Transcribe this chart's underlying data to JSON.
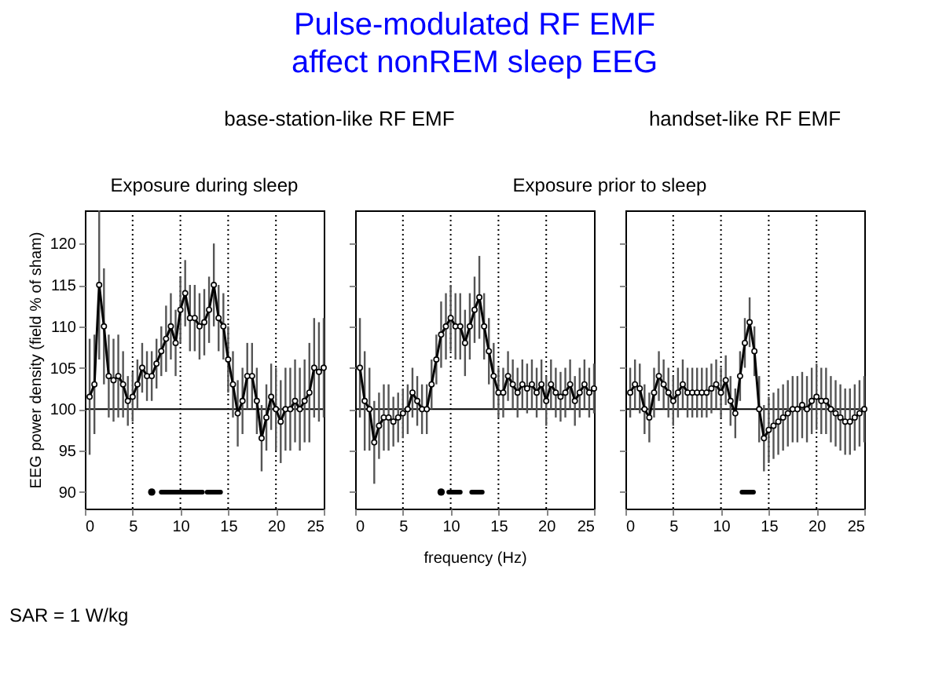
{
  "chart_data": [
    {
      "type": "line",
      "ylabel": "EEG power density (field % of sham)",
      "annotations": [
        "base-station-like RF EMF",
        "Exposure during sleep",
        "SAR = 1 W/kg"
      ],
      "xlim": [
        0,
        25
      ],
      "xticks": [
        0,
        5,
        10,
        15,
        20,
        25
      ],
      "ylim": [
        88,
        124
      ],
      "yticks": [
        90,
        95,
        100,
        105,
        110,
        115,
        120
      ],
      "grid": false,
      "marker": "circle",
      "x": [
        0.5,
        1,
        1.5,
        2,
        2.5,
        3,
        3.5,
        4,
        4.5,
        5,
        5.5,
        6,
        6.5,
        7,
        7.5,
        8,
        8.5,
        9,
        9.5,
        10,
        10.5,
        11,
        11.5,
        12,
        12.5,
        13,
        13.5,
        14,
        14.5,
        15,
        15.5,
        16,
        16.5,
        17,
        17.5,
        18,
        18.5,
        19,
        19.5,
        20,
        20.5,
        21,
        21.5,
        22,
        22.5,
        23,
        23.5,
        24,
        24.5,
        25
      ],
      "series": [
        {
          "color": "#000000",
          "values": [
            101.5,
            103,
            115,
            110,
            104,
            103.5,
            104,
            103,
            101,
            101.5,
            103,
            105,
            104,
            104,
            105.5,
            107,
            108.5,
            110,
            108,
            112,
            114,
            111,
            111,
            110,
            110.5,
            112,
            115,
            111,
            110,
            106,
            103,
            99.5,
            101,
            104,
            104,
            101,
            96.5,
            99,
            101.5,
            100,
            98.5,
            100,
            100,
            101,
            100,
            101,
            102,
            105,
            104.5,
            105
          ],
          "errors": [
            7,
            6,
            9,
            7,
            5,
            5,
            5,
            4,
            3,
            3,
            3,
            3,
            3,
            3,
            3,
            3,
            4,
            4,
            4,
            4,
            4,
            4,
            4,
            4,
            4,
            4,
            5,
            4,
            4,
            4,
            4,
            4,
            4,
            4,
            4,
            4,
            4,
            4,
            4,
            5,
            5,
            5,
            5,
            5,
            5,
            5,
            6,
            6,
            6,
            6
          ]
        },
        {
          "type": "line",
          "marker": "none",
          "color": "#000000",
          "x": [
            8,
            12.3,
            12.5,
            12.8,
            14.2
          ],
          "values": [
            90,
            90,
            null,
            90,
            90
          ]
        },
        {
          "type": "scatter",
          "marker": "circle",
          "color": "#000000",
          "x": [
            7
          ],
          "values": [
            90
          ]
        }
      ],
      "ref_lines": [
        {
          "axis": "x",
          "value": 5,
          "line_style": "dotted"
        },
        {
          "axis": "x",
          "value": 10,
          "line_style": "dotted"
        },
        {
          "axis": "x",
          "value": 15,
          "line_style": "dotted"
        },
        {
          "axis": "x",
          "value": 20,
          "line_style": "dotted"
        },
        {
          "axis": "y",
          "value": 100,
          "line_style": "solid"
        }
      ]
    },
    {
      "type": "line",
      "title": "Pulse-modulated RF EMF affect nonREM sleep EEG",
      "xlabel": "frequency (Hz)",
      "annotations": [
        "Exposure prior to sleep"
      ],
      "xlim": [
        0,
        25
      ],
      "xticks": [
        0,
        5,
        10,
        15,
        20,
        25
      ],
      "ylim": [
        88,
        124
      ],
      "yticks": [
        90,
        95,
        100,
        105,
        110,
        115,
        120
      ],
      "tick_labels": "x",
      "grid": false,
      "marker": "circle",
      "x": [
        0.5,
        1,
        1.5,
        2,
        2.5,
        3,
        3.5,
        4,
        4.5,
        5,
        5.5,
        6,
        6.5,
        7,
        7.5,
        8,
        8.5,
        9,
        9.5,
        10,
        10.5,
        11,
        11.5,
        12,
        12.5,
        13,
        13.5,
        14,
        14.5,
        15,
        15.5,
        16,
        16.5,
        17,
        17.5,
        18,
        18.5,
        19,
        19.5,
        20,
        20.5,
        21,
        21.5,
        22,
        22.5,
        23,
        23.5,
        24,
        24.5,
        25
      ],
      "series": [
        {
          "color": "#000000",
          "values": [
            105,
            101,
            100,
            96,
            98,
            99,
            99,
            98.5,
            99,
            99.5,
            100,
            102,
            101,
            100,
            100,
            103,
            106,
            109,
            110,
            111,
            110,
            110,
            108,
            110,
            112,
            113.5,
            110,
            107,
            104,
            102,
            102,
            104,
            103,
            102,
            103,
            102.5,
            103,
            102,
            103,
            101,
            103,
            102,
            101.5,
            102,
            103,
            101,
            102,
            103,
            102,
            102.5
          ],
          "errors": [
            6,
            6,
            5,
            5,
            4,
            4,
            4,
            3,
            3,
            3,
            3,
            3,
            3,
            3,
            3,
            3,
            3,
            4,
            4,
            4,
            4,
            4,
            4,
            4,
            4,
            5,
            4,
            4,
            4,
            3,
            3,
            3,
            3,
            3,
            3,
            3,
            3,
            3,
            3,
            3,
            3,
            3,
            3,
            3,
            3,
            3,
            3,
            3,
            3,
            3
          ]
        },
        {
          "type": "line",
          "marker": "none",
          "color": "#000000",
          "x": [
            9.8,
            11,
            11.5,
            12.2,
            13.3
          ],
          "values": [
            90,
            90,
            null,
            90,
            90
          ]
        },
        {
          "type": "scatter",
          "marker": "circle",
          "color": "#000000",
          "x": [
            9
          ],
          "values": [
            90
          ]
        }
      ],
      "ref_lines": [
        {
          "axis": "x",
          "value": 5,
          "line_style": "dotted"
        },
        {
          "axis": "x",
          "value": 10,
          "line_style": "dotted"
        },
        {
          "axis": "x",
          "value": 15,
          "line_style": "dotted"
        },
        {
          "axis": "x",
          "value": 20,
          "line_style": "dotted"
        },
        {
          "axis": "y",
          "value": 100,
          "line_style": "solid"
        }
      ]
    },
    {
      "type": "line",
      "annotations": [
        "handset-like RF EMF"
      ],
      "xlim": [
        0,
        25
      ],
      "xticks": [
        0,
        5,
        10,
        15,
        20,
        25
      ],
      "ylim": [
        88,
        124
      ],
      "yticks": [
        90,
        95,
        100,
        105,
        110,
        115,
        120
      ],
      "tick_labels": "x",
      "grid": false,
      "marker": "circle",
      "x": [
        0.5,
        1,
        1.5,
        2,
        2.5,
        3,
        3.5,
        4,
        4.5,
        5,
        5.5,
        6,
        6.5,
        7,
        7.5,
        8,
        8.5,
        9,
        9.5,
        10,
        10.5,
        11,
        11.5,
        12,
        12.5,
        13,
        13.5,
        14,
        14.5,
        15,
        15.5,
        16,
        16.5,
        17,
        17.5,
        18,
        18.5,
        19,
        19.5,
        20,
        20.5,
        21,
        21.5,
        22,
        22.5,
        23,
        23.5,
        24,
        24.5,
        25
      ],
      "series": [
        {
          "color": "#000000",
          "values": [
            102,
            103,
            102.5,
            100,
            99,
            102,
            104,
            103,
            102,
            101,
            102,
            103,
            102,
            102,
            102,
            102,
            102,
            102.5,
            103,
            102,
            103.5,
            101,
            99.5,
            104,
            108,
            110.5,
            107,
            100,
            96.5,
            97.5,
            98,
            98.5,
            99,
            99.5,
            100,
            100,
            100.5,
            100,
            101,
            101.5,
            101,
            101,
            100,
            99.5,
            99,
            98.5,
            98.5,
            99,
            99.5,
            100
          ],
          "errors": [
            3,
            3,
            3,
            3,
            3,
            3,
            3,
            3,
            3,
            3,
            3,
            3,
            3,
            3,
            3,
            3,
            3,
            3,
            3,
            3,
            3,
            3,
            3,
            3,
            3,
            3,
            3,
            4,
            4,
            4,
            4,
            4,
            4,
            4,
            4,
            4,
            4,
            4,
            4,
            4,
            4,
            4,
            4,
            4,
            4,
            4,
            4,
            4,
            4,
            4
          ]
        },
        {
          "type": "line",
          "marker": "none",
          "color": "#000000",
          "x": [
            12.2,
            13.4
          ],
          "values": [
            90,
            90
          ]
        }
      ],
      "ref_lines": [
        {
          "axis": "x",
          "value": 5,
          "line_style": "dotted"
        },
        {
          "axis": "x",
          "value": 10,
          "line_style": "dotted"
        },
        {
          "axis": "x",
          "value": 15,
          "line_style": "dotted"
        },
        {
          "axis": "x",
          "value": 20,
          "line_style": "dotted"
        },
        {
          "axis": "y",
          "value": 100,
          "line_style": "solid"
        }
      ]
    }
  ]
}
